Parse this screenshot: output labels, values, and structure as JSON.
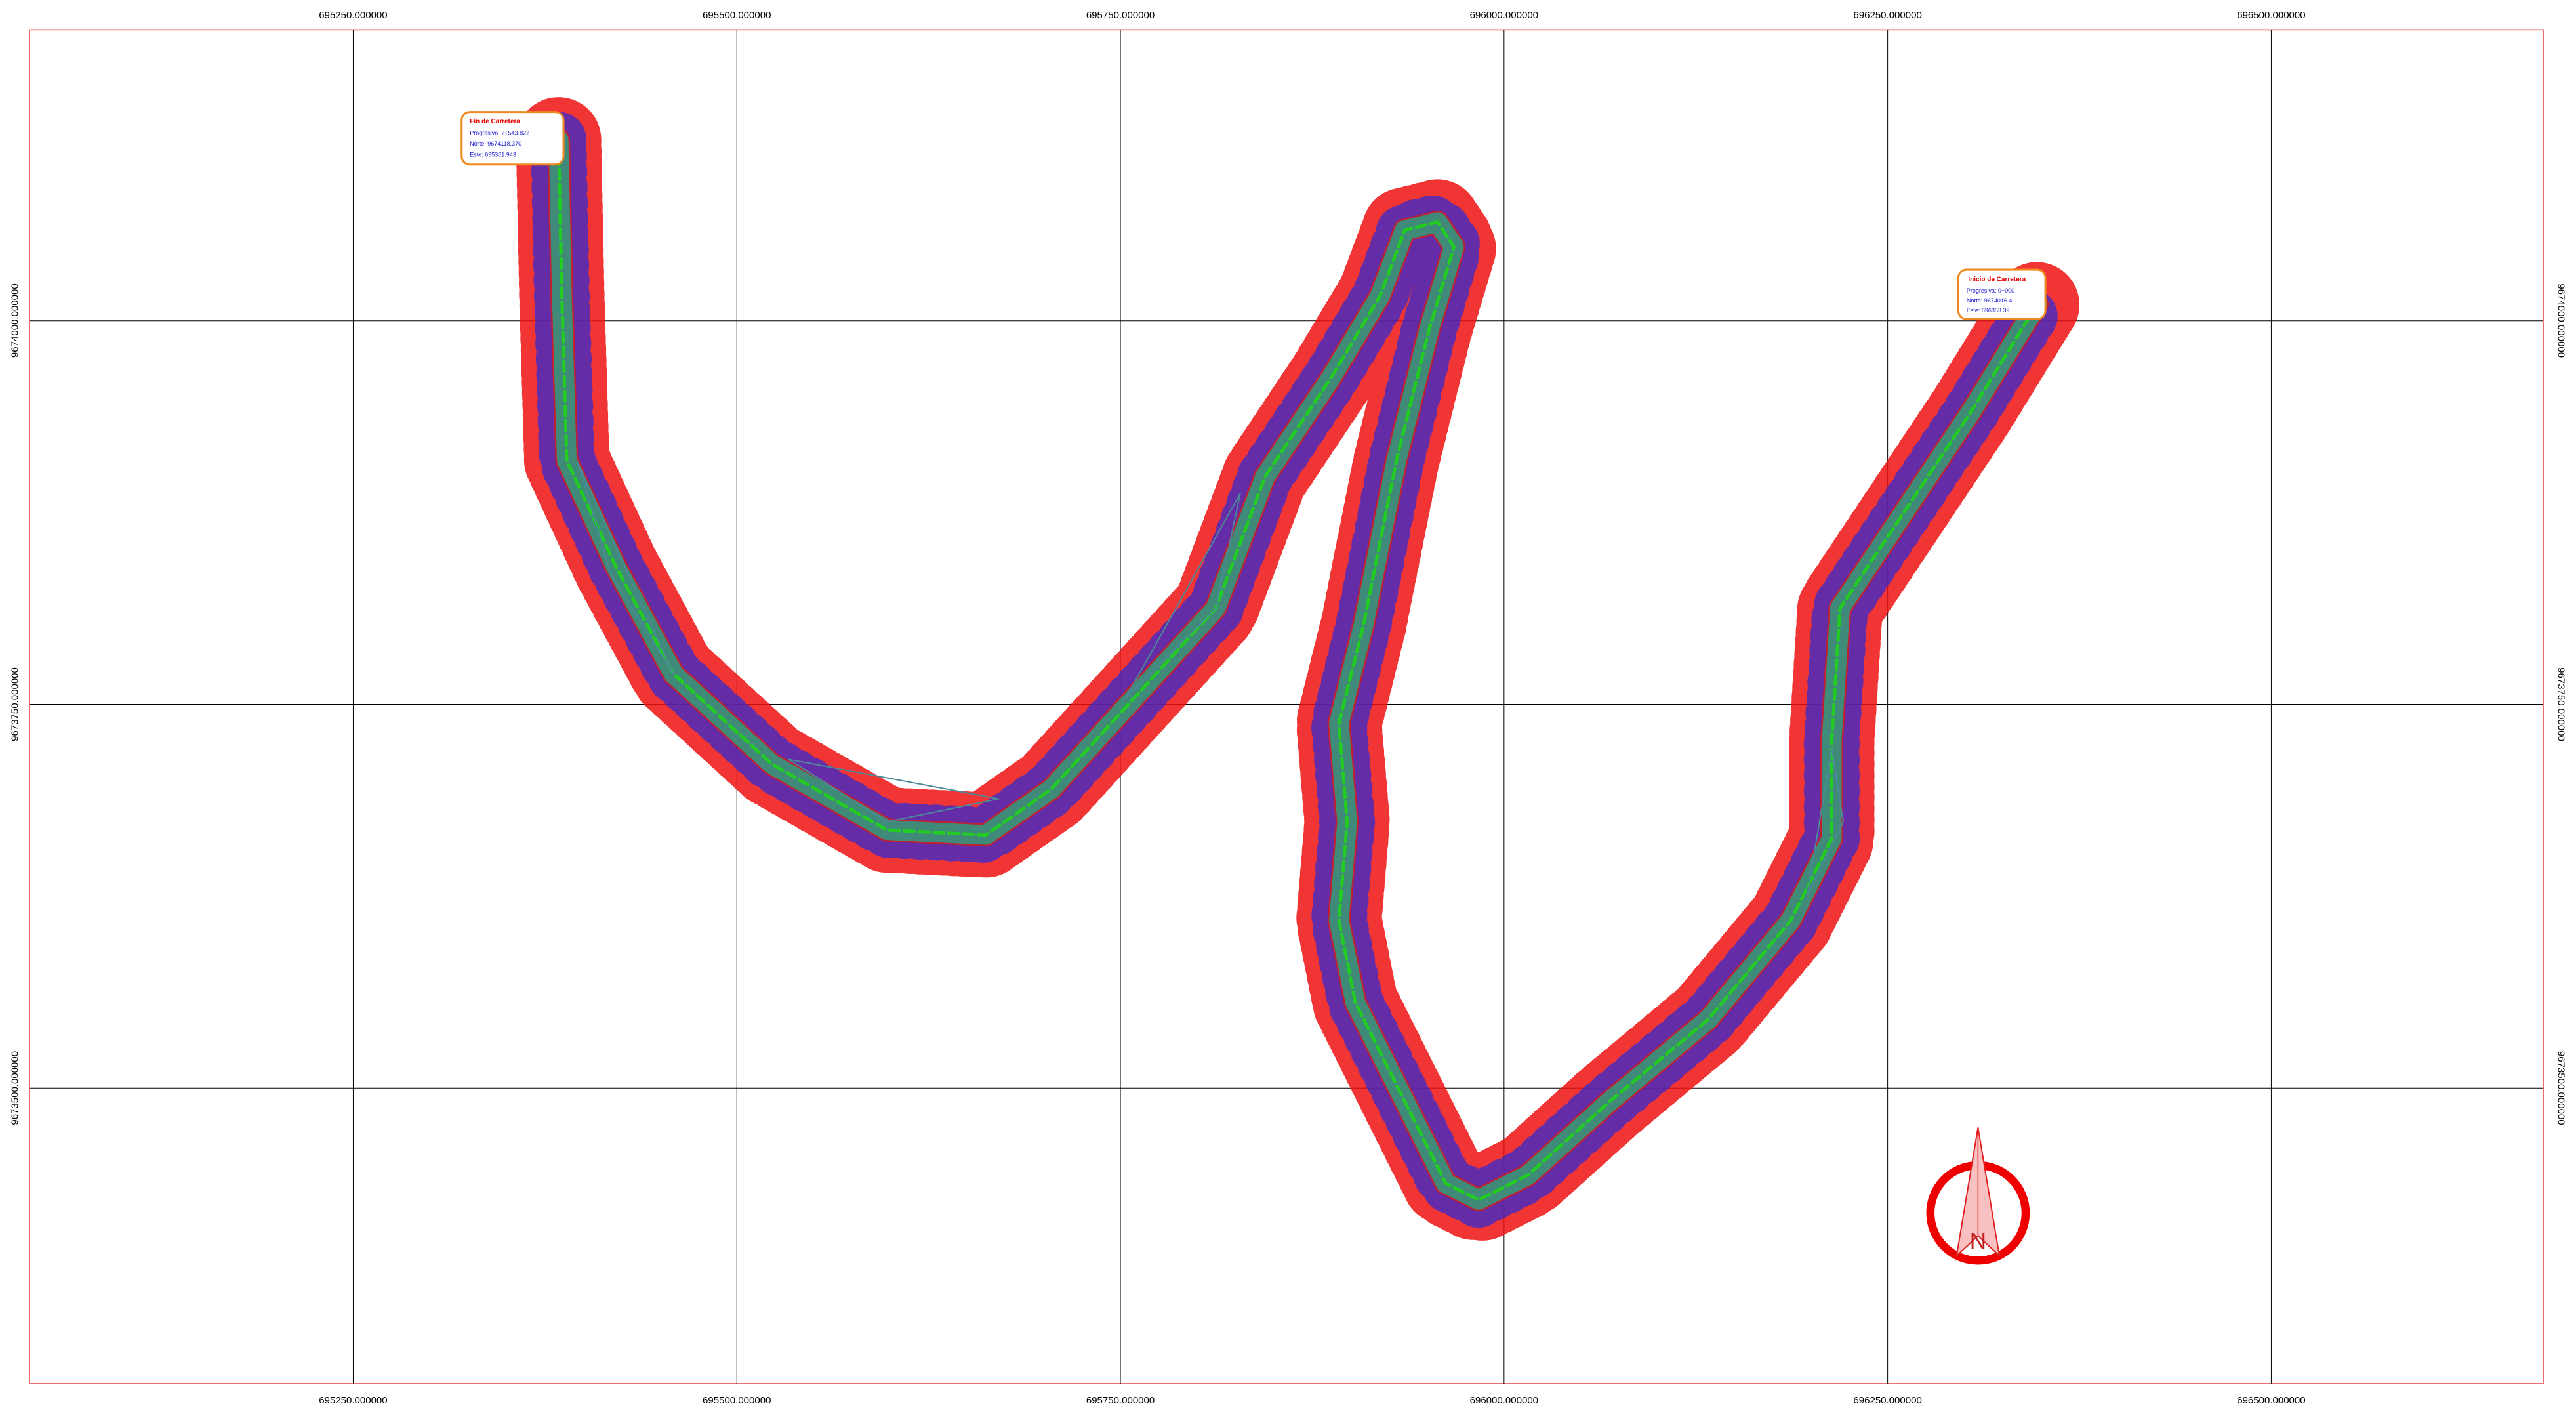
{
  "grid": {
    "eastings": [
      "695250.000000",
      "695500.000000",
      "695750.000000",
      "696000.000000",
      "696250.000000",
      "696500.000000"
    ],
    "northings": [
      "9674000.000000",
      "9673750.000000",
      "9673500.000000"
    ]
  },
  "end_box": {
    "title": "Fin de Carretera",
    "lines": [
      "Progresiva: 2+543.822",
      "Norte: 9674118.370",
      "Este: 695381.943"
    ]
  },
  "start_box": {
    "title": "Inicio de Carretera",
    "lines": [
      "Progresiva: 0+000",
      "Norte: 9674016.4",
      "Este: 696353.39"
    ]
  },
  "north_label": "N"
}
